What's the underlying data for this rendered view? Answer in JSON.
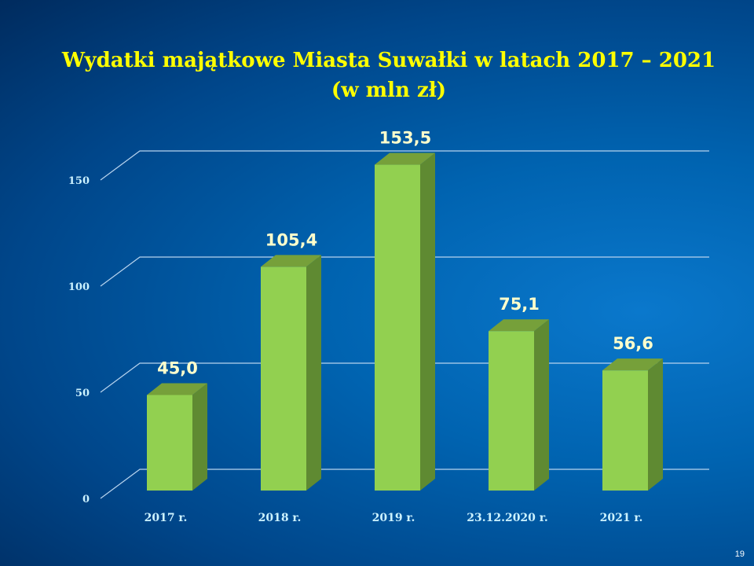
{
  "chart_data": {
    "type": "bar",
    "title": "Wydatki majątkowe Miasta Suwałki w latach 2017 – 2021 (w mln zł)",
    "categories": [
      "2017 r.",
      "2018 r.",
      "2019 r.",
      "23.12.2020 r.",
      "2021 r."
    ],
    "values": [
      45.0,
      105.4,
      153.5,
      75.1,
      56.6
    ],
    "data_labels": [
      "45,0",
      "105,4",
      "153,5",
      "75,1",
      "56,6"
    ],
    "yticks": [
      "0",
      "50",
      "100",
      "150"
    ],
    "ylim": [
      0,
      150
    ],
    "grid": true,
    "style": "3d-column",
    "colors": {
      "bar_front": "#92d050",
      "bar_side": "#5f8a32",
      "bar_top": "#76a03a",
      "title": "#ffff00",
      "labels": "#ffffcc",
      "ticks": "#ccf2ff"
    }
  },
  "page_number": "19"
}
